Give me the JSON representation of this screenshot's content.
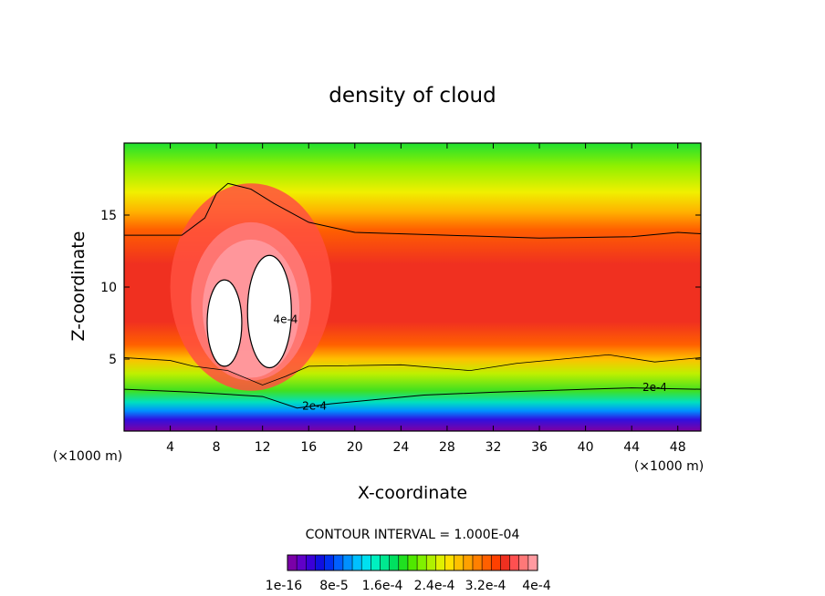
{
  "chart_data": {
    "type": "heatmap",
    "title": "density of cloud",
    "xlabel": "X-coordinate",
    "ylabel": "Z-coordinate",
    "x_unit": "(×1000 m)",
    "xlim": [
      0,
      50
    ],
    "ylim": [
      0,
      20
    ],
    "x_ticks": [
      4,
      8,
      12,
      16,
      20,
      24,
      28,
      32,
      36,
      40,
      44,
      48
    ],
    "y_ticks": [
      5,
      10,
      15
    ],
    "contour_interval_label": "CONTOUR INTERVAL = 1.000E-04",
    "contour_labels": [
      {
        "text": "4e-4",
        "x": 14,
        "z": 7.5
      },
      {
        "text": "2e-4",
        "x": 16.5,
        "z": 1.5
      },
      {
        "text": "2e-4",
        "x": 46,
        "z": 2.8
      }
    ],
    "white_cores": [
      {
        "x": 8.7,
        "z": 7.5,
        "rx": 1.5,
        "rz": 3.0
      },
      {
        "x": 12.6,
        "z": 8.3,
        "rx": 1.9,
        "rz": 3.9
      }
    ],
    "colorbar": {
      "colors": [
        "#7a00a8",
        "#6000c8",
        "#3a00d8",
        "#1010e0",
        "#0030f0",
        "#0060ff",
        "#0090ff",
        "#00c0ff",
        "#00e0f0",
        "#00f0c0",
        "#00e890",
        "#00e060",
        "#20e020",
        "#50e800",
        "#80f000",
        "#b0f000",
        "#e0f000",
        "#ffe000",
        "#ffc000",
        "#ffa000",
        "#ff8000",
        "#ff6000",
        "#ff4000",
        "#f03020",
        "#ff5050",
        "#ff7878",
        "#ff9aa0"
      ],
      "tick_labels": [
        "1e-16",
        "8e-5",
        "1.6e-4",
        "2.4e-4",
        "3.2e-4",
        "4e-4"
      ]
    }
  }
}
